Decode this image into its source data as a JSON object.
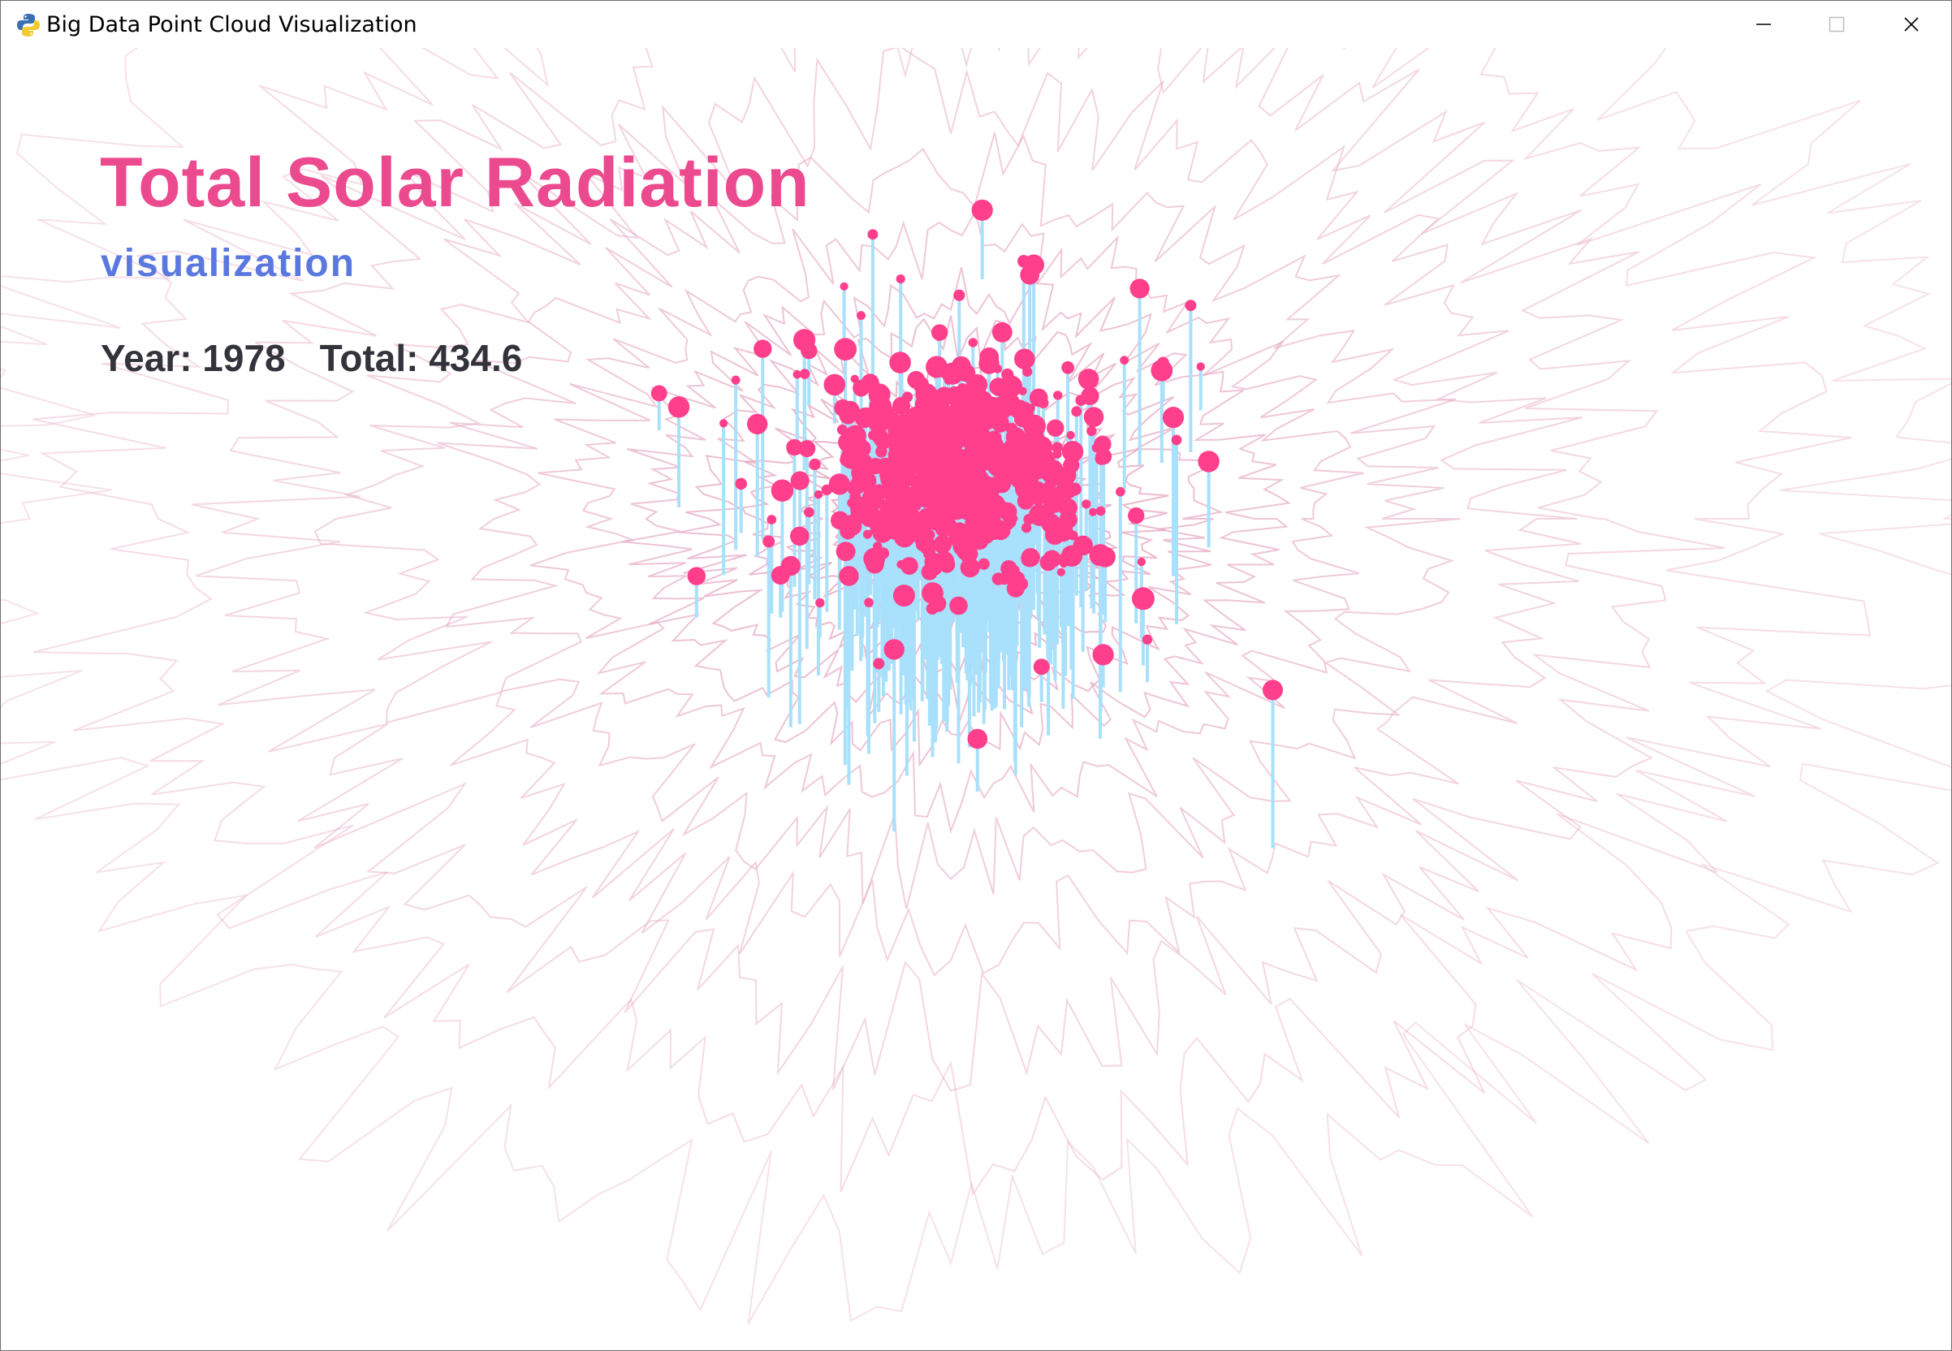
{
  "window": {
    "title": "Big Data Point Cloud Visualization",
    "app_icon": "python-icon",
    "controls": [
      "minimize-icon",
      "maximize-icon",
      "close-icon"
    ]
  },
  "hud": {
    "title": "Total Solar Radiation",
    "subtitle": "visualization",
    "year_label": "Year: 1978",
    "total_label": "Total: 434.6"
  },
  "colors": {
    "title": "#ec4a8e",
    "subtitle": "#5a78e0",
    "stats": "#33333b",
    "contour": "#e5a8c2",
    "point": "#ff3f8c",
    "stem": "#a9e0fb"
  },
  "chart_data": {
    "type": "scatter",
    "year": 1978,
    "total": 434.6,
    "grid": false,
    "background": "#ffffff"
  }
}
